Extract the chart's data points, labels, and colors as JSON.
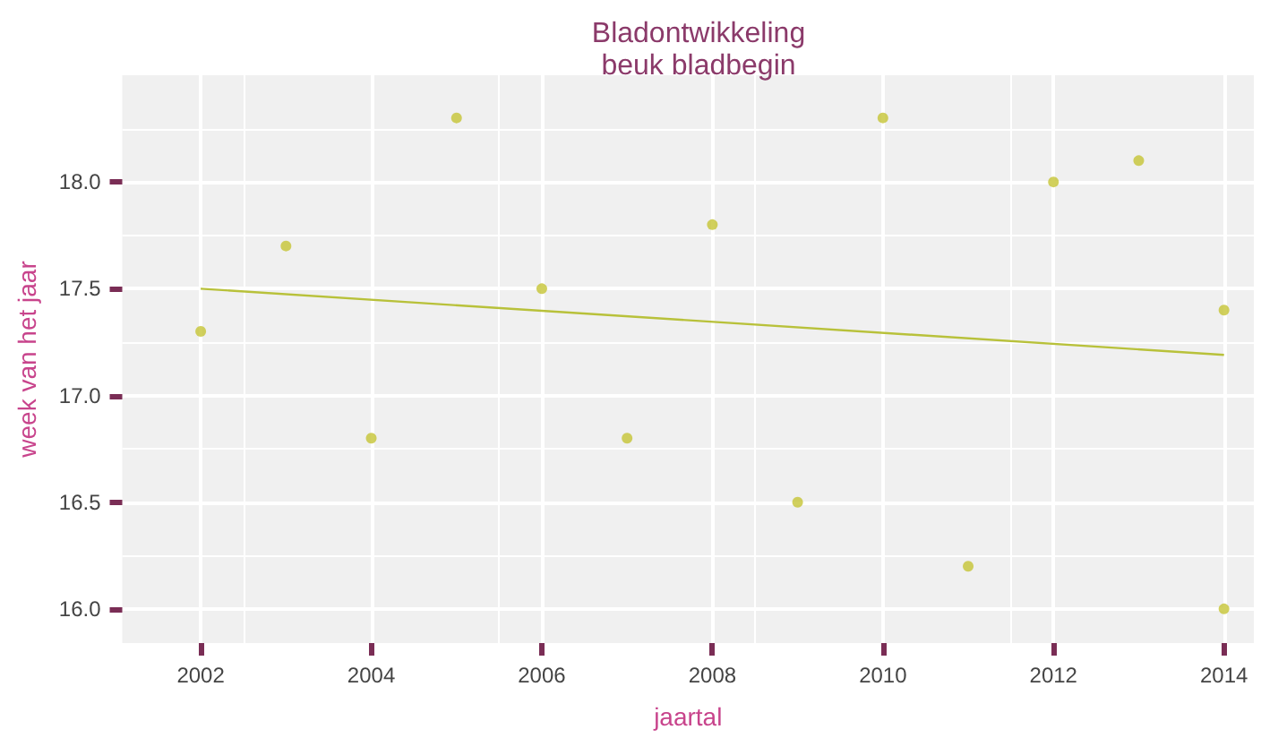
{
  "chart_data": {
    "type": "scatter",
    "title": "Bladontwikkeling",
    "subtitle": "beuk bladbegin",
    "xlabel": "jaartal",
    "ylabel": "week van het jaar",
    "x": [
      2002,
      2003,
      2004,
      2005,
      2006,
      2007,
      2008,
      2009,
      2010,
      2011,
      2012,
      2013,
      2014,
      2014
    ],
    "series": [
      {
        "color": "#c5c435",
        "values": [
          17.3,
          17.7,
          16.8,
          18.3,
          17.5,
          16.8,
          17.8,
          16.5,
          18.3,
          16.2,
          18.0,
          18.1,
          17.4,
          16.0
        ]
      },
      {
        "type": "line",
        "color": "#b8c13a",
        "x": [
          2002,
          2014
        ],
        "values": [
          17.5,
          17.19
        ],
        "marker": "none"
      }
    ],
    "xlim": [
      2001.08,
      2014.35
    ],
    "xticks": [
      2002,
      2004,
      2006,
      2008,
      2010,
      2012,
      2014
    ],
    "ylim": [
      15.84,
      18.5
    ],
    "yticks": [
      {
        "value": 16,
        "label": "16.0"
      },
      {
        "value": 16.5,
        "label": "16.5"
      },
      {
        "value": 17,
        "label": "17.0"
      },
      {
        "value": 17.5,
        "label": "17.5"
      },
      {
        "value": 18,
        "label": "18.0"
      }
    ],
    "grid": true,
    "marker": "circle"
  }
}
